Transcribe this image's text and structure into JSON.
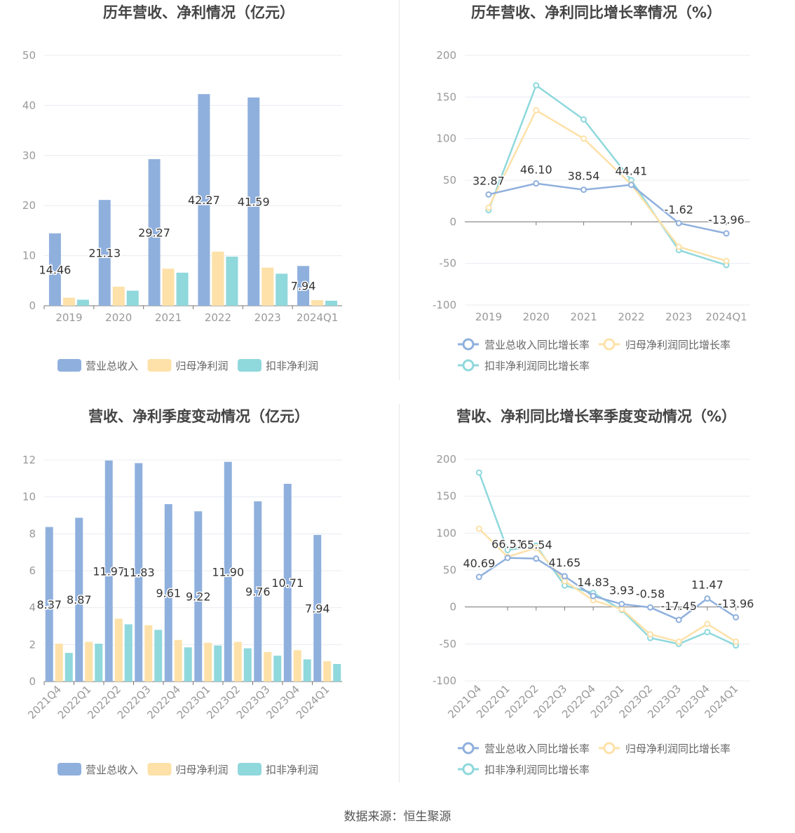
{
  "colors": {
    "revenue": "#8fb0dd",
    "net_profit": "#fde1a8",
    "deducted": "#8fd8dc",
    "axis": "#999999",
    "grid": "#e9ecf2"
  },
  "source": "数据来源：恒生聚源",
  "chart_data": [
    {
      "type": "bar",
      "title": "历年营收、净利情况（亿元）",
      "categories": [
        "2019",
        "2020",
        "2021",
        "2022",
        "2023",
        "2024Q1"
      ],
      "series": [
        {
          "name": "营业总收入",
          "values": [
            14.46,
            21.13,
            29.27,
            42.27,
            41.59,
            7.94
          ],
          "labels": [
            "14.46",
            "21.13",
            "29.27",
            "42.27",
            "41.59",
            "7.94"
          ]
        },
        {
          "name": "归母净利润",
          "values": [
            1.6,
            3.8,
            7.4,
            10.8,
            7.6,
            1.1
          ]
        },
        {
          "name": "扣非净利润",
          "values": [
            1.2,
            3.0,
            6.6,
            9.8,
            6.4,
            1.0
          ]
        }
      ],
      "yticks": [
        "0",
        "10",
        "20",
        "30",
        "40",
        "50"
      ],
      "ylim": [
        0,
        50
      ],
      "legend": "bottom"
    },
    {
      "type": "line",
      "title": "历年营收、净利同比增长率情况（%）",
      "categories": [
        "2019",
        "2020",
        "2021",
        "2022",
        "2023",
        "2024Q1"
      ],
      "series": [
        {
          "name": "营业总收入同比增长率",
          "values": [
            32.87,
            46.1,
            38.54,
            44.41,
            -1.62,
            -13.96
          ],
          "labels": [
            "32.87",
            "46.10",
            "38.54",
            "44.41",
            "-1.62",
            "-13.96"
          ]
        },
        {
          "name": "归母净利润同比增长率",
          "values": [
            17,
            134,
            100,
            45,
            -30,
            -47
          ]
        },
        {
          "name": "扣非净利润同比增长率",
          "values": [
            14,
            164,
            123,
            50,
            -34,
            -52
          ]
        }
      ],
      "yticks": [
        "-100",
        "-50",
        "0",
        "50",
        "100",
        "150",
        "200"
      ],
      "ylim": [
        -100,
        200
      ],
      "legend": "bottom"
    },
    {
      "type": "bar",
      "title": "营收、净利季度变动情况（亿元）",
      "categories": [
        "2021Q4",
        "2022Q1",
        "2022Q2",
        "2022Q3",
        "2022Q4",
        "2023Q1",
        "2023Q2",
        "2023Q3",
        "2023Q4",
        "2024Q1"
      ],
      "series": [
        {
          "name": "营业总收入",
          "values": [
            8.37,
            8.87,
            11.97,
            11.83,
            9.61,
            9.22,
            11.9,
            9.76,
            10.71,
            7.94
          ],
          "labels": [
            "8.37",
            "8.87",
            "11.97",
            "11.83",
            "9.61",
            "9.22",
            "11.90",
            "9.76",
            "10.71",
            "7.94"
          ]
        },
        {
          "name": "归母净利润",
          "values": [
            2.05,
            2.15,
            3.4,
            3.05,
            2.25,
            2.1,
            2.15,
            1.6,
            1.7,
            1.1
          ]
        },
        {
          "name": "扣非净利润",
          "values": [
            1.55,
            2.05,
            3.1,
            2.8,
            1.85,
            1.95,
            1.8,
            1.4,
            1.2,
            0.95
          ]
        }
      ],
      "yticks": [
        "0",
        "2",
        "4",
        "6",
        "8",
        "10",
        "12"
      ],
      "ylim": [
        0,
        12
      ],
      "legend": "bottom"
    },
    {
      "type": "line",
      "title": "营收、净利同比增长率季度变动情况（%）",
      "categories": [
        "2021Q4",
        "2022Q1",
        "2022Q2",
        "2022Q3",
        "2022Q4",
        "2023Q1",
        "2023Q2",
        "2023Q3",
        "2023Q4",
        "2024Q1"
      ],
      "series": [
        {
          "name": "营业总收入同比增长率",
          "values": [
            40.69,
            66.51,
            65.54,
            41.65,
            14.83,
            3.93,
            -0.58,
            -17.45,
            11.47,
            -13.96
          ],
          "labels": [
            "40.69",
            "66.51",
            "65.54",
            "41.65",
            "14.83",
            "3.93",
            "-0.58",
            "-17.45",
            "11.47",
            "-13.96"
          ]
        },
        {
          "name": "归母净利润同比增长率",
          "values": [
            106,
            68,
            80,
            35,
            9,
            -3,
            -37,
            -47,
            -23,
            -47
          ]
        },
        {
          "name": "扣非净利润同比增长率",
          "values": [
            182,
            77,
            83,
            29,
            19,
            -4,
            -42,
            -50,
            -34,
            -52
          ]
        }
      ],
      "yticks": [
        "-100",
        "-50",
        "0",
        "50",
        "100",
        "150",
        "200"
      ],
      "ylim": [
        -100,
        200
      ],
      "legend": "bottom"
    }
  ]
}
